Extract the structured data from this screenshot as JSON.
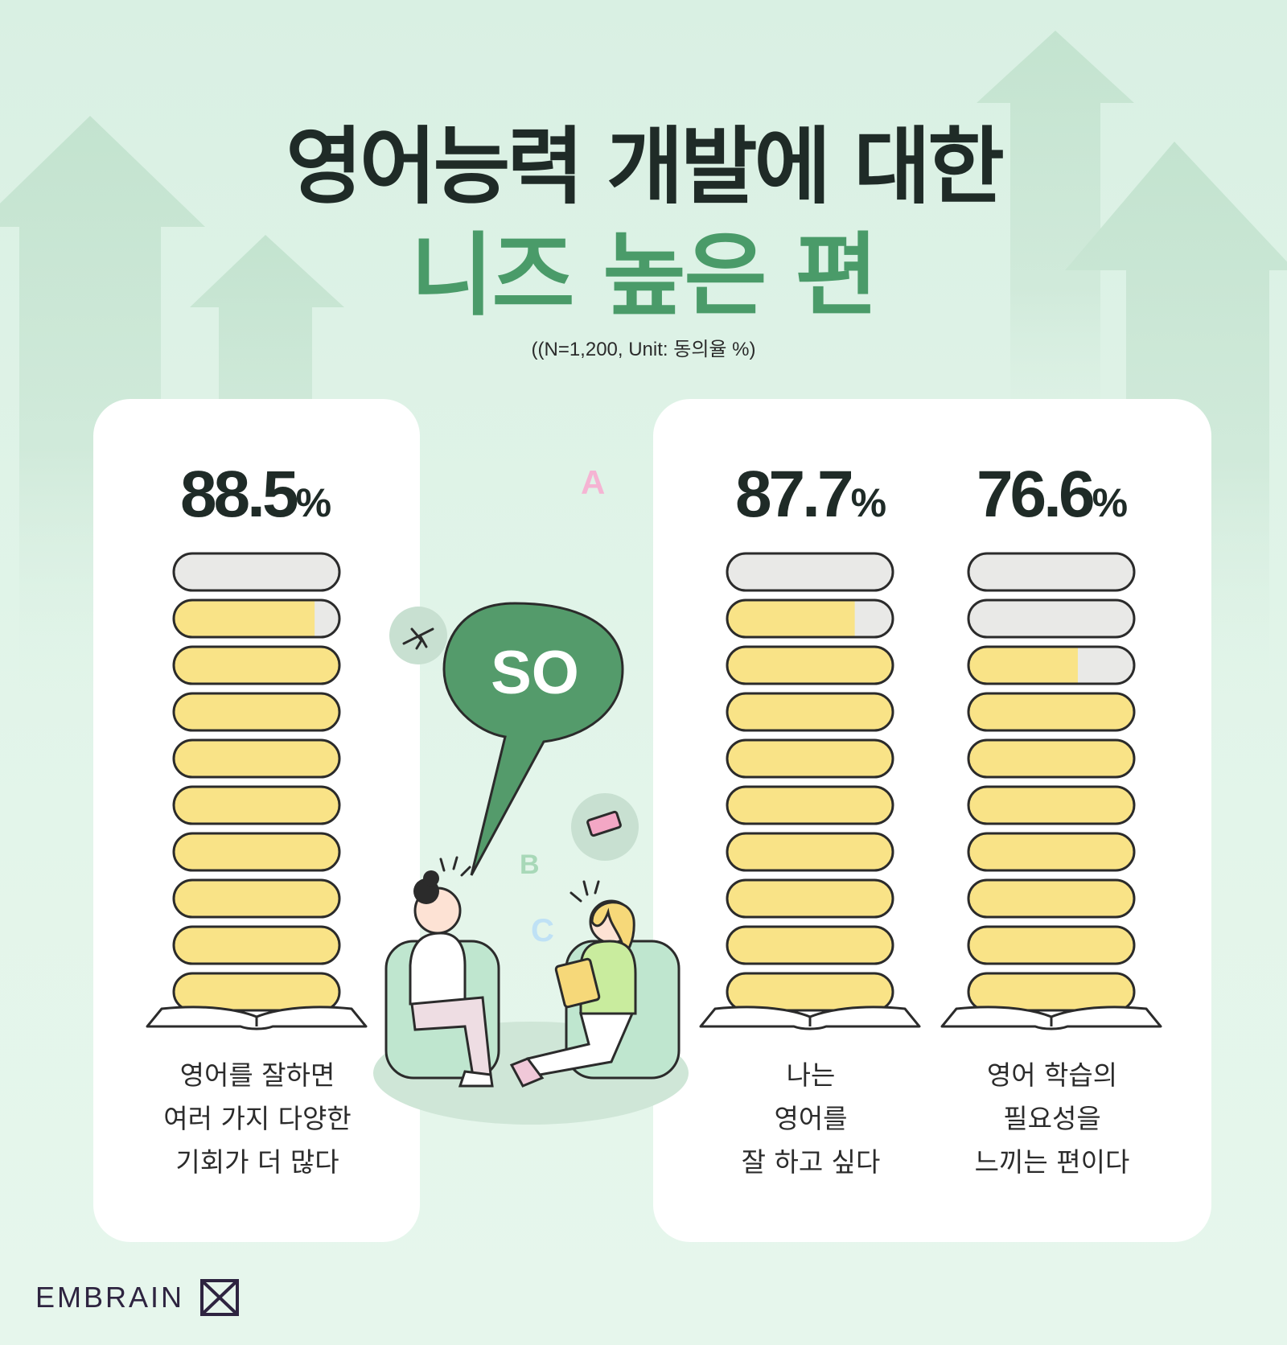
{
  "title_line1": "영어능력 개발에 대한",
  "title_line2": "니즈 높은 편",
  "note": "((N=1,200, Unit: 동의율 %)",
  "speech_bubble_text": "SO",
  "floating_letters": [
    "A",
    "B",
    "C"
  ],
  "brand": "EMBRAIN",
  "colors": {
    "title_accent": "#4a9b69",
    "bar_fill": "#f9e387",
    "bar_empty": "#e9e9e7",
    "outline": "#2b2b2b",
    "bubble": "#549b6b"
  },
  "chart_data": {
    "type": "bar",
    "unit": "%",
    "categories": [
      "영어를 잘하면\n여러 가지 다양한\n기회가 더 많다",
      "나는\n영어를\n잘 하고 싶다",
      "영어 학습의\n필요성을\n느끼는 편이다"
    ],
    "values": [
      88.5,
      87.7,
      76.6
    ],
    "value_labels": [
      "88.5",
      "87.7",
      "76.6"
    ],
    "ylim": [
      0,
      100
    ]
  }
}
